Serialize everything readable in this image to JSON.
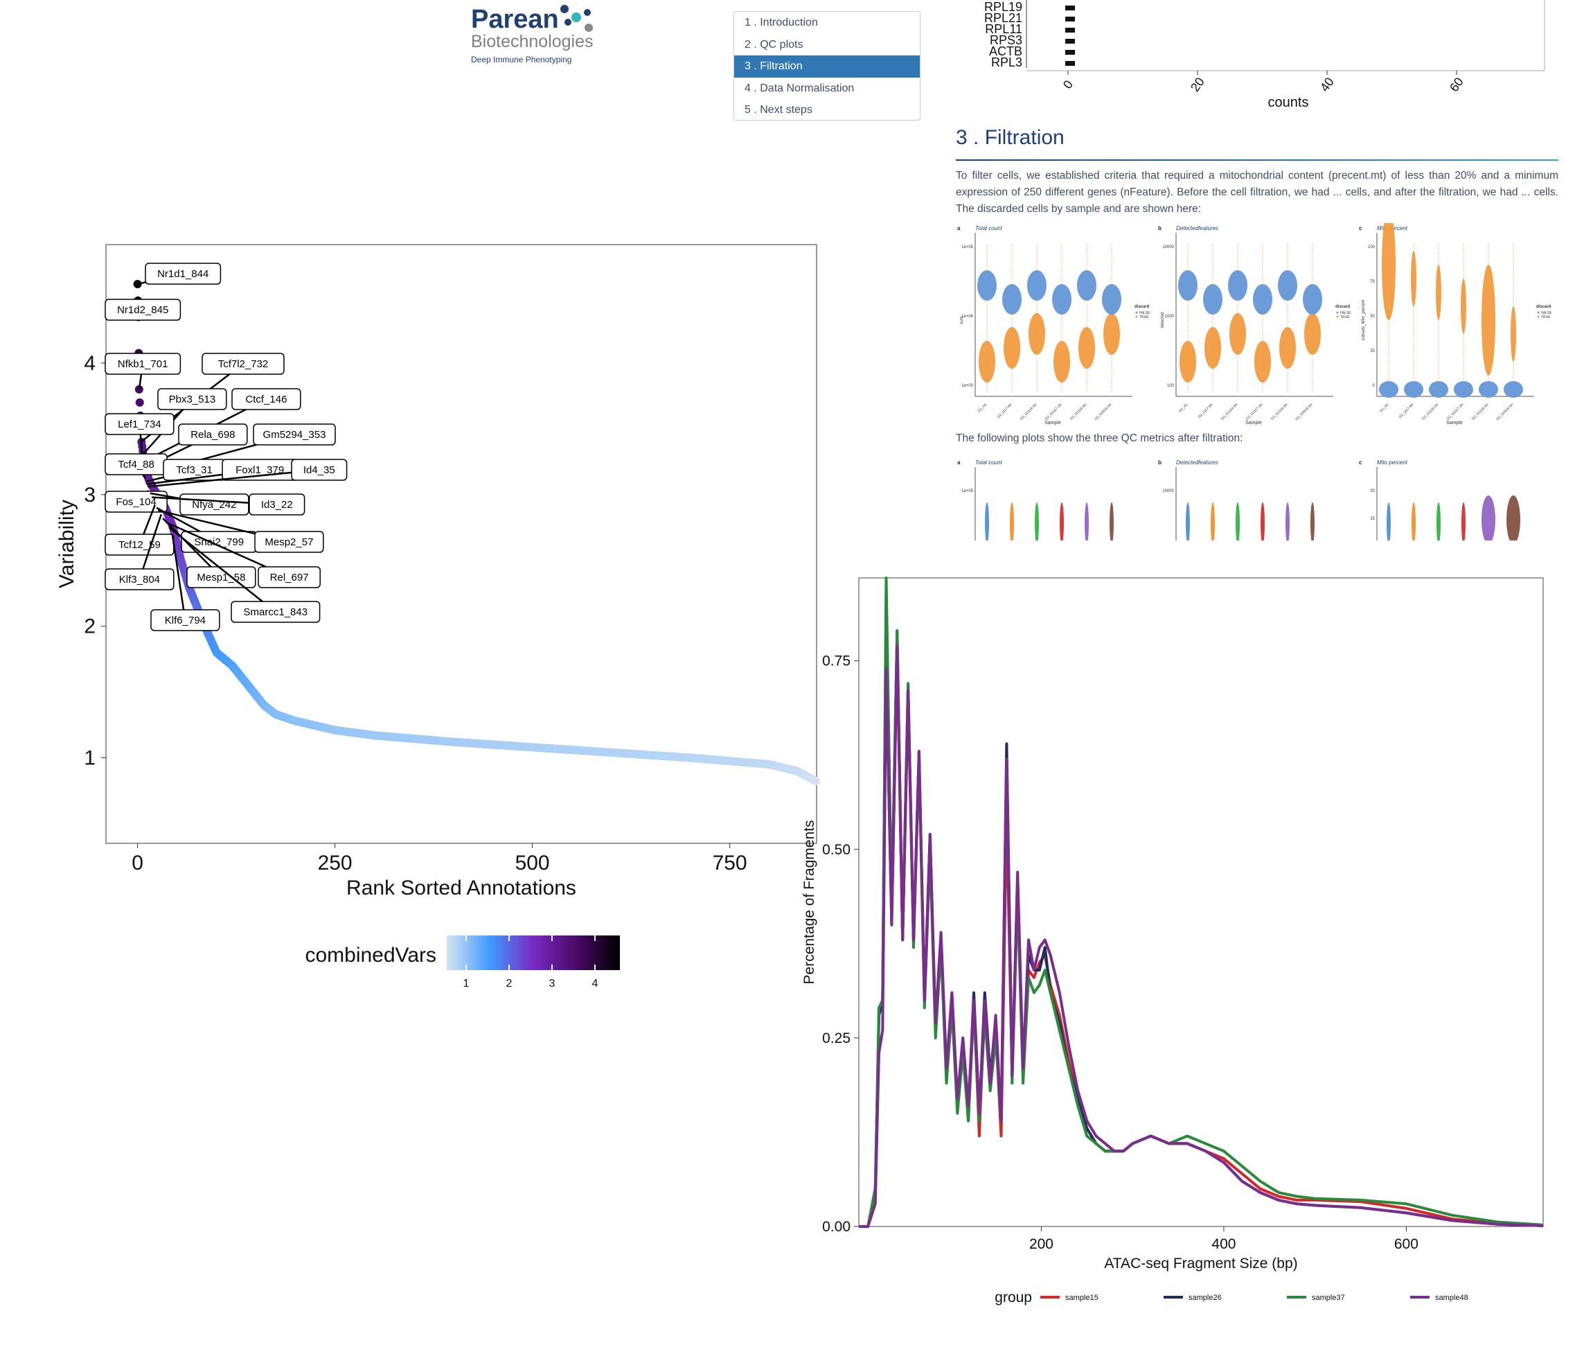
{
  "logo": {
    "brand": "Parean",
    "sub": "Biotechnologies",
    "tagline": "Deep Immune Phenotyping"
  },
  "toc": {
    "items": [
      {
        "num": "1",
        "label": "Introduction"
      },
      {
        "num": "2",
        "label": "QC plots"
      },
      {
        "num": "3",
        "label": "Filtration",
        "active": true
      },
      {
        "num": "4",
        "label": "Data Normalisation"
      },
      {
        "num": "5",
        "label": "Next steps"
      }
    ]
  },
  "report": {
    "top_genes": [
      "RPL19",
      "RPL21",
      "RPL11",
      "RPS3",
      "ACTB",
      "RPL3"
    ],
    "top_axis_ticks": [
      "0",
      "20",
      "40",
      "60"
    ],
    "top_axis_label": "counts",
    "section_title": "3 . Filtration",
    "paragraph": "To filter cells, we established criteria that required a mitochondrial content (precent.mt) of less than 20% and a minimum expression of 250 different genes (nFeature). Before the cell filtration, we had ... cells, and after the filtration, we had ... cells. The discarded cells by sample and are shown here:",
    "paragraph2": "The following plots show the three QC metrics after filtration:",
    "panels": [
      {
        "letter": "a",
        "title": "Total count",
        "ylabel": "sum",
        "yticks": [
          "1e+05",
          "1e+04",
          "1e+03"
        ]
      },
      {
        "letter": "b",
        "title": "Detectedfeatures",
        "ylabel": "detected",
        "yticks": [
          "10000",
          "1000",
          "100"
        ]
      },
      {
        "letter": "c",
        "title": "Mito percent",
        "ylabel": "subsets_Mito_percent",
        "yticks": [
          "100",
          "75",
          "50",
          "25",
          "0"
        ]
      }
    ],
    "panels_after": [
      {
        "letter": "a",
        "title": "Total count",
        "yticks": [
          "1e+05"
        ]
      },
      {
        "letter": "b",
        "title": "Detectedfeatures",
        "yticks": [
          "10000"
        ]
      },
      {
        "letter": "c",
        "title": "Mito percent",
        "yticks": [
          "20",
          "15"
        ]
      }
    ],
    "samples": [
      "G1_H1",
      "G2_1117-8A",
      "G2_G1119-5A",
      "G2_G1117-3A",
      "G2_G1119-4A",
      "G2_G2619-5A"
    ],
    "sample_axis": "Sample",
    "discard_legend": {
      "title": "discard",
      "items": [
        "FALSE",
        "TRUE"
      ]
    }
  },
  "chart_data": [
    {
      "type": "scatter",
      "xlabel": "Rank Sorted Annotations",
      "ylabel": "Variability",
      "xlim": [
        -40,
        860
      ],
      "ylim": [
        0.35,
        4.9
      ],
      "xticks": [
        0,
        250,
        500,
        750
      ],
      "yticks": [
        1,
        2,
        3,
        4
      ],
      "color_scale": {
        "title": "combinedVars",
        "ticks": [
          "1",
          "2",
          "3",
          "4"
        ],
        "colors": [
          "#d6e4f3",
          "#3f9bff",
          "#7a29c4",
          "#4a0a66",
          "#000000"
        ]
      },
      "curve": [
        [
          0,
          4.6
        ],
        [
          1,
          4.35
        ],
        [
          2,
          3.8
        ],
        [
          5,
          3.4
        ],
        [
          10,
          3.2
        ],
        [
          15,
          3.1
        ],
        [
          25,
          3.0
        ],
        [
          35,
          2.9
        ],
        [
          45,
          2.75
        ],
        [
          55,
          2.5
        ],
        [
          65,
          2.3
        ],
        [
          75,
          2.15
        ],
        [
          85,
          2.0
        ],
        [
          100,
          1.8
        ],
        [
          120,
          1.7
        ],
        [
          140,
          1.55
        ],
        [
          160,
          1.4
        ],
        [
          175,
          1.33
        ],
        [
          200,
          1.28
        ],
        [
          250,
          1.21
        ],
        [
          300,
          1.17
        ],
        [
          400,
          1.12
        ],
        [
          500,
          1.08
        ],
        [
          600,
          1.04
        ],
        [
          700,
          1.0
        ],
        [
          800,
          0.95
        ],
        [
          835,
          0.9
        ],
        [
          860,
          0.82
        ]
      ],
      "labels": [
        {
          "text": "Nr1d1_844",
          "x": 0,
          "y": 4.6
        },
        {
          "text": "Nr1d2_845",
          "x": 1,
          "y": 4.35
        },
        {
          "text": "Nfkb1_701",
          "x": 2,
          "y": 3.8
        },
        {
          "text": "Tcf7l2_732",
          "x": 4,
          "y": 3.4
        },
        {
          "text": "Pbx3_513",
          "x": 6,
          "y": 3.3
        },
        {
          "text": "Ctcf_146",
          "x": 7,
          "y": 3.25
        },
        {
          "text": "Lef1_734",
          "x": 6,
          "y": 3.3
        },
        {
          "text": "Rela_698",
          "x": 8,
          "y": 3.2
        },
        {
          "text": "Gm5294_353",
          "x": 9,
          "y": 3.15
        },
        {
          "text": "Tcf4_88",
          "x": 10,
          "y": 3.12
        },
        {
          "text": "Tcf3_31",
          "x": 11,
          "y": 3.1
        },
        {
          "text": "Foxl1_379",
          "x": 12,
          "y": 3.08
        },
        {
          "text": "Id4_35",
          "x": 13,
          "y": 3.06
        },
        {
          "text": "Fos_104",
          "x": 14,
          "y": 3.03
        },
        {
          "text": "Nfya_242",
          "x": 16,
          "y": 3.01
        },
        {
          "text": "Id3_22",
          "x": 18,
          "y": 2.98
        },
        {
          "text": "Tcf12_59",
          "x": 22,
          "y": 2.92
        },
        {
          "text": "Snai2_799",
          "x": 24,
          "y": 2.9
        },
        {
          "text": "Mesp2_57",
          "x": 26,
          "y": 2.88
        },
        {
          "text": "Klf3_804",
          "x": 30,
          "y": 2.85
        },
        {
          "text": "Mesp1_58",
          "x": 32,
          "y": 2.82
        },
        {
          "text": "Rel_697",
          "x": 36,
          "y": 2.79
        },
        {
          "text": "Smarcc1_843",
          "x": 40,
          "y": 2.75
        },
        {
          "text": "Klf6_794",
          "x": 44,
          "y": 2.7
        }
      ]
    },
    {
      "type": "line",
      "xlabel": "ATAC-seq Fragment Size (bp)",
      "ylabel": "Percentage of Fragments",
      "xlim": [
        0,
        750
      ],
      "ylim": [
        0,
        0.86
      ],
      "xticks": [
        200,
        400,
        600
      ],
      "yticks": [
        "0.00",
        "0.25",
        "0.50",
        "0.75"
      ],
      "legend": {
        "title": "group",
        "position": "bottom"
      },
      "x": [
        0,
        10,
        18,
        22,
        26,
        30,
        36,
        42,
        48,
        54,
        60,
        66,
        72,
        78,
        84,
        90,
        96,
        102,
        108,
        114,
        120,
        126,
        132,
        138,
        144,
        150,
        156,
        162,
        168,
        174,
        180,
        186,
        192,
        198,
        204,
        210,
        220,
        230,
        240,
        250,
        260,
        270,
        280,
        290,
        300,
        320,
        340,
        360,
        380,
        400,
        420,
        440,
        460,
        480,
        500,
        550,
        600,
        650,
        700,
        750
      ],
      "series": [
        {
          "name": "sample15",
          "color": "#d62728",
          "values": [
            0,
            0,
            0.04,
            0.28,
            0.3,
            0.74,
            0.4,
            0.76,
            0.38,
            0.7,
            0.38,
            0.62,
            0.3,
            0.5,
            0.26,
            0.38,
            0.2,
            0.3,
            0.16,
            0.24,
            0.14,
            0.3,
            0.12,
            0.3,
            0.18,
            0.26,
            0.12,
            0.55,
            0.2,
            0.45,
            0.2,
            0.34,
            0.33,
            0.35,
            0.36,
            0.32,
            0.28,
            0.22,
            0.17,
            0.13,
            0.11,
            0.1,
            0.1,
            0.1,
            0.11,
            0.12,
            0.11,
            0.11,
            0.1,
            0.09,
            0.07,
            0.05,
            0.04,
            0.035,
            0.035,
            0.033,
            0.024,
            0.01,
            0.004,
            0.001
          ]
        },
        {
          "name": "sample26",
          "color": "#1f2d5c",
          "values": [
            0,
            0,
            0.05,
            0.28,
            0.3,
            0.84,
            0.42,
            0.79,
            0.38,
            0.72,
            0.38,
            0.63,
            0.3,
            0.52,
            0.26,
            0.38,
            0.2,
            0.31,
            0.16,
            0.25,
            0.15,
            0.31,
            0.15,
            0.31,
            0.2,
            0.27,
            0.14,
            0.64,
            0.2,
            0.46,
            0.2,
            0.36,
            0.34,
            0.34,
            0.37,
            0.31,
            0.27,
            0.21,
            0.17,
            0.13,
            0.11,
            0.1,
            0.1,
            0.1,
            0.11,
            0.12,
            0.11,
            0.11,
            0.1,
            0.085,
            0.06,
            0.045,
            0.035,
            0.03,
            0.028,
            0.025,
            0.018,
            0.008,
            0.003,
            0.001
          ]
        },
        {
          "name": "sample37",
          "color": "#2a8a3b",
          "values": [
            0,
            0,
            0.05,
            0.29,
            0.3,
            0.86,
            0.42,
            0.79,
            0.38,
            0.72,
            0.37,
            0.62,
            0.29,
            0.5,
            0.25,
            0.37,
            0.19,
            0.29,
            0.15,
            0.23,
            0.14,
            0.29,
            0.14,
            0.28,
            0.18,
            0.25,
            0.14,
            0.62,
            0.19,
            0.44,
            0.19,
            0.33,
            0.31,
            0.32,
            0.34,
            0.31,
            0.26,
            0.21,
            0.16,
            0.12,
            0.11,
            0.1,
            0.1,
            0.1,
            0.11,
            0.12,
            0.11,
            0.12,
            0.11,
            0.1,
            0.08,
            0.06,
            0.045,
            0.04,
            0.037,
            0.035,
            0.03,
            0.015,
            0.006,
            0.002
          ]
        },
        {
          "name": "sample48",
          "color": "#7b2d8e",
          "values": [
            0,
            0,
            0.03,
            0.23,
            0.26,
            0.74,
            0.4,
            0.77,
            0.38,
            0.71,
            0.38,
            0.63,
            0.3,
            0.52,
            0.27,
            0.39,
            0.21,
            0.31,
            0.17,
            0.25,
            0.16,
            0.3,
            0.15,
            0.3,
            0.19,
            0.28,
            0.14,
            0.62,
            0.2,
            0.47,
            0.21,
            0.38,
            0.34,
            0.37,
            0.38,
            0.36,
            0.31,
            0.24,
            0.18,
            0.14,
            0.12,
            0.11,
            0.1,
            0.1,
            0.11,
            0.12,
            0.11,
            0.11,
            0.1,
            0.085,
            0.06,
            0.045,
            0.035,
            0.03,
            0.028,
            0.025,
            0.018,
            0.008,
            0.003,
            0.001
          ]
        }
      ]
    }
  ]
}
